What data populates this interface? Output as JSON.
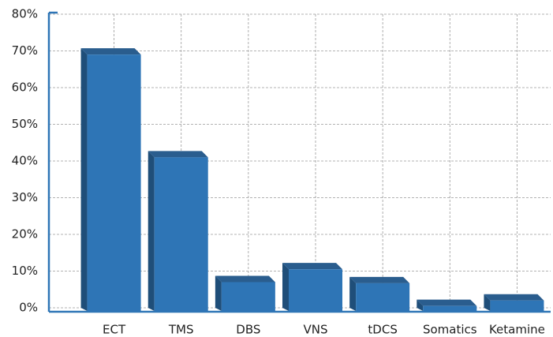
{
  "chart_data": {
    "type": "bar",
    "categories": [
      "ECT",
      "TMS",
      "DBS",
      "VNS",
      "tDCS",
      "Somatics",
      "Ketamine"
    ],
    "values": [
      69,
      41,
      7,
      10.5,
      6.7,
      0.5,
      2
    ],
    "color": "#2e75b6",
    "ylim": [
      0,
      80
    ],
    "yticks": [
      {
        "value": 0,
        "label": "0%"
      },
      {
        "value": 10,
        "label": "10%"
      },
      {
        "value": 20,
        "label": "20%"
      },
      {
        "value": 30,
        "label": "30%"
      },
      {
        "value": 40,
        "label": "40%"
      },
      {
        "value": 50,
        "label": "50%"
      },
      {
        "value": 60,
        "label": "60%"
      },
      {
        "value": 70,
        "label": "70%"
      },
      {
        "value": 80,
        "label": "80%"
      }
    ],
    "grid": true
  }
}
